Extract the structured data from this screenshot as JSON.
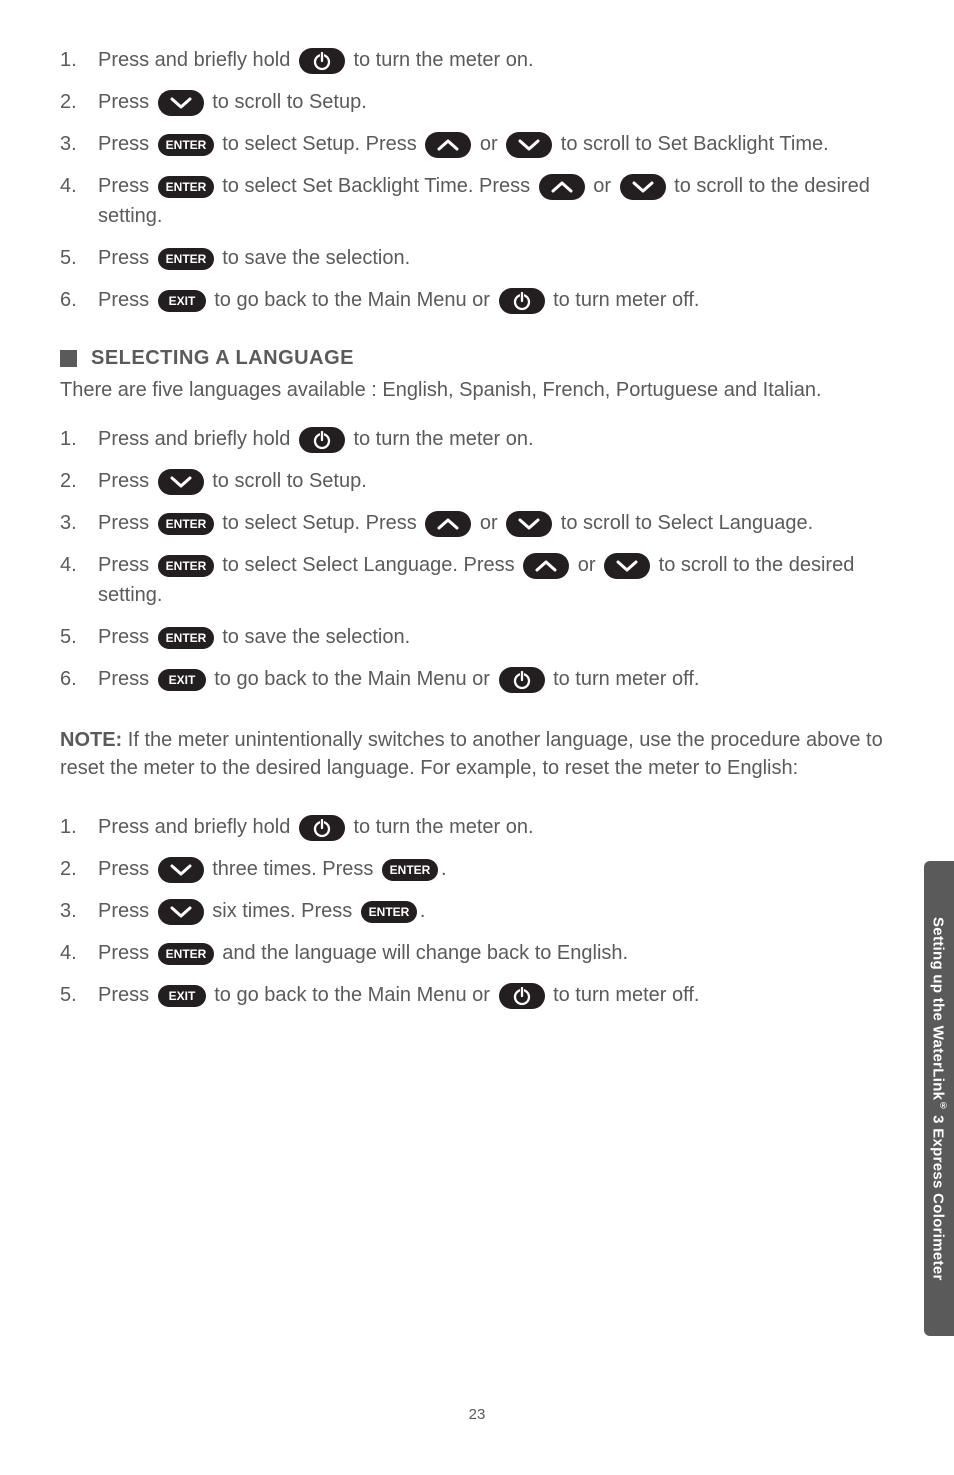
{
  "colors": {
    "text": "#5a5a5a",
    "pill_bg": "#231f20",
    "pill_fg": "#ffffff",
    "sidebar_bg": "#5a5a5a"
  },
  "section1": {
    "steps": [
      {
        "n": "1.",
        "pre": "Press and briefly hold ",
        "icon": "power",
        "post": " to turn the meter on."
      },
      {
        "n": "2.",
        "pre": "Press ",
        "icon": "down",
        "post": " to scroll to Setup."
      },
      {
        "n": "3.",
        "parts": [
          "Press ",
          {
            "i": "enter"
          },
          "  to select Setup. Press ",
          {
            "i": "up"
          },
          " or ",
          {
            "i": "down"
          },
          " to scroll to Set Backlight Time."
        ]
      },
      {
        "n": "4.",
        "parts": [
          "Press ",
          {
            "i": "enter"
          },
          "  to select Set Backlight Time. Press ",
          {
            "i": "up"
          },
          " or ",
          {
            "i": "down"
          },
          " to scroll to the desired setting."
        ]
      },
      {
        "n": "5.",
        "parts": [
          "Press ",
          {
            "i": "enter"
          },
          "  to save the selection."
        ]
      },
      {
        "n": "6.",
        "parts": [
          "Press ",
          {
            "i": "exit"
          },
          " to go back to the Main Menu or ",
          {
            "i": "power"
          },
          " to turn meter off."
        ]
      }
    ]
  },
  "heading2": "SELECTING A LANGUAGE",
  "intro2": "There are five languages available : English, Spanish, French, Portuguese and Italian.",
  "section2": {
    "steps": [
      {
        "n": "1.",
        "parts": [
          "Press and briefly hold ",
          {
            "i": "power"
          },
          " to turn the meter on."
        ]
      },
      {
        "n": "2.",
        "parts": [
          "Press ",
          {
            "i": "down"
          },
          " to scroll to Setup."
        ]
      },
      {
        "n": "3.",
        "parts": [
          "Press ",
          {
            "i": "enter"
          },
          " to select Setup. Press ",
          {
            "i": "up"
          },
          " or ",
          {
            "i": "down"
          },
          "  to scroll to Select Language."
        ]
      },
      {
        "n": "4.",
        "parts": [
          "Press ",
          {
            "i": "enter"
          },
          " to select Select Language. Press ",
          {
            "i": "up"
          },
          " or ",
          {
            "i": "down"
          },
          " to scroll to the desired setting."
        ]
      },
      {
        "n": "5.",
        "parts": [
          "Press ",
          {
            "i": "enter"
          },
          " to save the selection."
        ]
      },
      {
        "n": "6.",
        "parts": [
          "Press ",
          {
            "i": "exit"
          },
          " to go back to the Main Menu or ",
          {
            "i": "power"
          },
          " to turn meter off."
        ]
      }
    ]
  },
  "note_label": "NOTE:",
  "note_body": " If the meter unintentionally switches to another language, use the procedure above to reset the meter to the desired language. For example, to reset the meter to English:",
  "section3": {
    "steps": [
      {
        "n": "1.",
        "parts": [
          "Press and briefly hold ",
          {
            "i": "power"
          },
          " to turn the meter on."
        ]
      },
      {
        "n": "2.",
        "parts": [
          "Press ",
          {
            "i": "down"
          },
          " three times. Press ",
          {
            "i": "enter"
          },
          "."
        ]
      },
      {
        "n": "3.",
        "parts": [
          "Press ",
          {
            "i": "down"
          },
          " six times. Press ",
          {
            "i": "enter"
          },
          "."
        ]
      },
      {
        "n": "4.",
        "parts": [
          "Press ",
          {
            "i": "enter"
          },
          " and the language will change back to English."
        ]
      },
      {
        "n": "5.",
        "parts": [
          "Press ",
          {
            "i": "exit"
          },
          " to go back to the Main Menu or ",
          {
            "i": "power"
          },
          " to turn meter off."
        ]
      }
    ]
  },
  "sidebar_pre": "Setting up the WaterLink",
  "sidebar_reg": "®",
  "sidebar_post": " 3 Express Colorimeter",
  "page_number": "23"
}
